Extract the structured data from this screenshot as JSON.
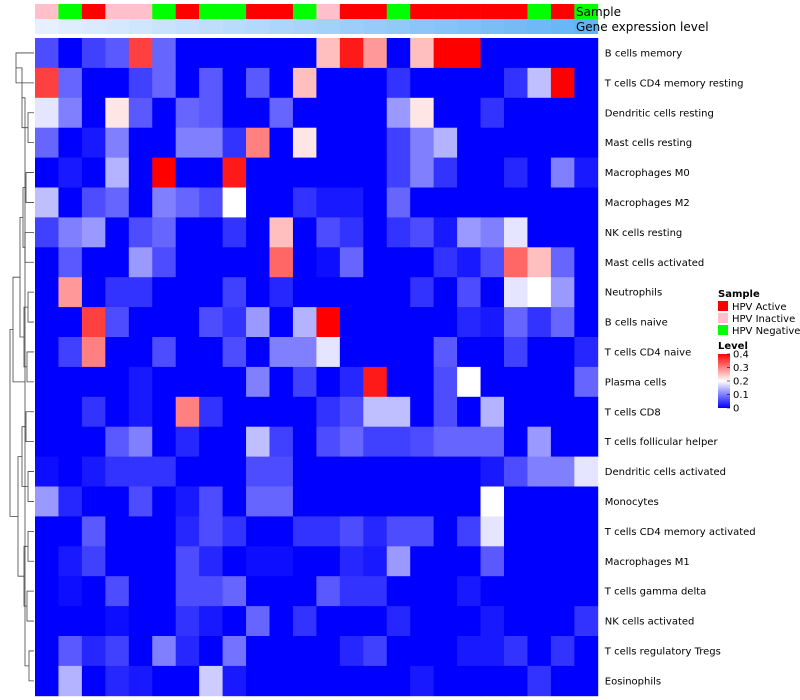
{
  "chart_data": {
    "type": "heatmap",
    "title": "",
    "annotation_tracks": [
      "Sample",
      "Gene expression level"
    ],
    "sample_annotation": [
      "HPV Inactive",
      "HPV Negative",
      "HPV Active",
      "HPV Inactive",
      "HPV Inactive",
      "HPV Negative",
      "HPV Active",
      "HPV Negative",
      "HPV Negative",
      "HPV Active",
      "HPV Active",
      "HPV Negative",
      "HPV Inactive",
      "HPV Active",
      "HPV Active",
      "HPV Negative",
      "HPV Active",
      "HPV Active",
      "HPV Active",
      "HPV Active",
      "HPV Active",
      "HPV Negative",
      "HPV Active",
      "HPV Negative"
    ],
    "gene_expression_level": [
      0.02,
      0.03,
      0.04,
      0.05,
      0.06,
      0.07,
      0.08,
      0.09,
      0.1,
      0.11,
      0.12,
      0.13,
      0.14,
      0.15,
      0.16,
      0.17,
      0.18,
      0.19,
      0.2,
      0.21,
      0.22,
      0.23,
      0.24,
      0.25
    ],
    "rows": [
      "B cells memory",
      "T cells CD4 memory resting",
      "Dendritic cells resting",
      "Mast cells resting",
      "Macrophages M0",
      "Macrophages M2",
      "NK cells resting",
      "Mast cells activated",
      "Neutrophils",
      "B cells naive",
      "T cells CD4 naive",
      "Plasma cells",
      "T cells CD8",
      "T cells follicular helper",
      "Dendritic cells activated",
      "Monocytes",
      "T cells CD4 memory activated",
      "Macrophages M1",
      "T cells gamma delta",
      "NK cells activated",
      "T cells regulatory  Tregs",
      "Eosinophils"
    ],
    "values": [
      [
        0.06,
        0,
        0.05,
        0.07,
        0.35,
        0.08,
        0,
        0,
        0,
        0,
        0,
        0,
        0.25,
        0.38,
        0.28,
        0,
        0.25,
        0.4,
        0.4,
        0,
        0,
        0,
        0,
        0
      ],
      [
        0.35,
        0.08,
        0,
        0,
        0.05,
        0.08,
        0,
        0.07,
        0,
        0.07,
        0,
        0.25,
        0,
        0,
        0,
        0.04,
        0,
        0,
        0,
        0,
        0.04,
        0.15,
        0.4,
        0
      ],
      [
        0.18,
        0.1,
        0,
        0.22,
        0.07,
        0,
        0.08,
        0.07,
        0,
        0,
        0.08,
        0,
        0,
        0,
        0,
        0.12,
        0.22,
        0,
        0,
        0.04,
        0,
        0,
        0,
        0
      ],
      [
        0.08,
        0,
        0.02,
        0.1,
        0,
        0,
        0.1,
        0.1,
        0.04,
        0.3,
        0,
        0.22,
        0,
        0,
        0,
        0.05,
        0.1,
        0.14,
        0,
        0,
        0,
        0,
        0,
        0
      ],
      [
        0,
        0.02,
        0,
        0.14,
        0,
        0.4,
        0,
        0,
        0.38,
        0,
        0,
        0,
        0,
        0,
        0,
        0.05,
        0.1,
        0.04,
        0,
        0,
        0.03,
        0,
        0.1,
        0.02
      ],
      [
        0.15,
        0,
        0.06,
        0.08,
        0,
        0.1,
        0.08,
        0.06,
        0.2,
        0,
        0,
        0.04,
        0.02,
        0.02,
        0,
        0.08,
        0,
        0,
        0,
        0,
        0,
        0,
        0,
        0
      ],
      [
        0.05,
        0.1,
        0.12,
        0,
        0.06,
        0.08,
        0,
        0,
        0.04,
        0,
        0.25,
        0,
        0.06,
        0.04,
        0,
        0.04,
        0.06,
        0.02,
        0.12,
        0.1,
        0.18,
        0,
        0,
        0
      ],
      [
        0,
        0.07,
        0,
        0,
        0.12,
        0.06,
        0,
        0,
        0,
        0,
        0.32,
        0,
        0.01,
        0.08,
        0,
        0,
        0,
        0.04,
        0.02,
        0.06,
        0.32,
        0.25,
        0.08,
        0
      ],
      [
        0,
        0.28,
        0,
        0.04,
        0.04,
        0,
        0,
        0,
        0.05,
        0,
        0.03,
        0,
        0,
        0,
        0,
        0,
        0.04,
        0,
        0.06,
        0,
        0.18,
        0.2,
        0.12,
        0
      ],
      [
        0,
        0,
        0.35,
        0.06,
        0,
        0,
        0,
        0.06,
        0.04,
        0.12,
        0,
        0.14,
        0.4,
        0,
        0,
        0,
        0,
        0,
        0.03,
        0.02,
        0.08,
        0.04,
        0.08,
        0
      ],
      [
        0,
        0.05,
        0.3,
        0,
        0,
        0.06,
        0,
        0,
        0.06,
        0,
        0.1,
        0.1,
        0.18,
        0,
        0,
        0,
        0,
        0.07,
        0,
        0,
        0.05,
        0,
        0,
        0.03
      ],
      [
        0,
        0,
        0,
        0,
        0.02,
        0,
        0,
        0,
        0,
        0.1,
        0,
        0.05,
        0,
        0.03,
        0.38,
        0,
        0,
        0.06,
        0.2,
        0,
        0,
        0,
        0,
        0.08
      ],
      [
        0,
        0,
        0.04,
        0,
        0.02,
        0,
        0.3,
        0.04,
        0,
        0,
        0,
        0,
        0.04,
        0.06,
        0.15,
        0.15,
        0,
        0.06,
        0,
        0.14,
        0,
        0,
        0,
        0
      ],
      [
        0,
        0,
        0,
        0.07,
        0.1,
        0,
        0.03,
        0,
        0,
        0.15,
        0.05,
        0,
        0.06,
        0.08,
        0.05,
        0.05,
        0.06,
        0.08,
        0.08,
        0.08,
        0,
        0.12,
        0,
        0
      ],
      [
        0.01,
        0,
        0.02,
        0.04,
        0.04,
        0.04,
        0,
        0,
        0,
        0.06,
        0.06,
        0,
        0,
        0,
        0,
        0,
        0,
        0,
        0,
        0.02,
        0.06,
        0.1,
        0.1,
        0.18
      ],
      [
        0.12,
        0.03,
        0,
        0,
        0.06,
        0,
        0.02,
        0.06,
        0,
        0.08,
        0.08,
        0,
        0,
        0,
        0,
        0,
        0,
        0,
        0,
        0.2,
        0,
        0,
        0,
        0
      ],
      [
        0,
        0,
        0.07,
        0,
        0,
        0,
        0.03,
        0.06,
        0.04,
        0,
        0,
        0.04,
        0.04,
        0.06,
        0.03,
        0.06,
        0.06,
        0,
        0.05,
        0.18,
        0,
        0,
        0,
        0
      ],
      [
        0,
        0.02,
        0.05,
        0,
        0,
        0,
        0.06,
        0.03,
        0,
        0.01,
        0.01,
        0,
        0,
        0.03,
        0.02,
        0.12,
        0,
        0,
        0,
        0.07,
        0,
        0,
        0,
        0
      ],
      [
        0,
        0.01,
        0,
        0.06,
        0,
        0,
        0.06,
        0.06,
        0.08,
        0,
        0,
        0,
        0.07,
        0.04,
        0.04,
        0,
        0,
        0,
        0.02,
        0,
        0,
        0,
        0,
        0
      ],
      [
        0,
        0,
        0,
        0.01,
        0,
        0,
        0.04,
        0.02,
        0,
        0.08,
        0,
        0.04,
        0,
        0,
        0,
        0.03,
        0,
        0,
        0,
        0.02,
        0,
        0,
        0,
        0.04
      ],
      [
        0,
        0.07,
        0.03,
        0.05,
        0,
        0.1,
        0.03,
        0,
        0.09,
        0,
        0,
        0,
        0,
        0.03,
        0.05,
        0,
        0,
        0,
        0.02,
        0.02,
        0.04,
        0,
        0.04,
        0
      ],
      [
        0,
        0.14,
        0,
        0.03,
        0.02,
        0,
        0,
        0.16,
        0.02,
        0,
        0,
        0,
        0,
        0,
        0,
        0,
        0.02,
        0,
        0,
        0,
        0,
        0.04,
        0,
        0
      ]
    ],
    "legend_sample": {
      "title": "Sample",
      "entries": [
        {
          "label": "HPV Active",
          "color": "#ff0000"
        },
        {
          "label": "HPV Inactive",
          "color": "#ffc0cb"
        },
        {
          "label": "HPV Negative",
          "color": "#00ff00"
        }
      ]
    },
    "legend_level": {
      "title": "Level",
      "range": [
        0,
        0.4
      ],
      "ticks": [
        "0.4",
        "0.3",
        "0.2",
        "0.1",
        "0"
      ],
      "tick_values": [
        0.4,
        0.3,
        0.2,
        0.1,
        0
      ]
    },
    "colors": {
      "low": "#0000ff",
      "mid": "#ffffff",
      "high": "#ff0000"
    }
  }
}
